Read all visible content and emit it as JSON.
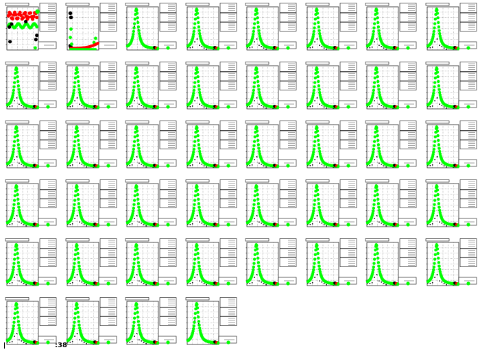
{
  "footer": {
    "label": ":38"
  },
  "colors": {
    "frame": "#000000",
    "green": "#00ff00",
    "red": "#ff0000",
    "black": "#000000",
    "grid": "#000000"
  },
  "chart_data": {
    "type": "scatter",
    "grid": true,
    "layout": {
      "rows": 6,
      "columns": 8
    },
    "panel_count": 44,
    "panels": [
      {
        "index": 0,
        "shape": "step"
      },
      {
        "index": 1,
        "shape": "rising"
      },
      {
        "index": 2,
        "shape": "peak",
        "black_peak": true
      },
      {
        "index": 3,
        "shape": "peak"
      },
      {
        "index": 4,
        "shape": "peak"
      },
      {
        "index": 5,
        "shape": "peak"
      },
      {
        "index": 6,
        "shape": "peak"
      },
      {
        "index": 7,
        "shape": "peak"
      },
      {
        "index": 8,
        "shape": "peak"
      },
      {
        "index": 9,
        "shape": "peak"
      },
      {
        "index": 10,
        "shape": "peak"
      },
      {
        "index": 11,
        "shape": "peak"
      },
      {
        "index": 12,
        "shape": "peak"
      },
      {
        "index": 13,
        "shape": "peak"
      },
      {
        "index": 14,
        "shape": "peak"
      },
      {
        "index": 15,
        "shape": "peak"
      },
      {
        "index": 16,
        "shape": "peak"
      },
      {
        "index": 17,
        "shape": "peak"
      },
      {
        "index": 18,
        "shape": "peak"
      },
      {
        "index": 19,
        "shape": "peak"
      },
      {
        "index": 20,
        "shape": "peak"
      },
      {
        "index": 21,
        "shape": "peak"
      },
      {
        "index": 22,
        "shape": "peak"
      },
      {
        "index": 23,
        "shape": "peak"
      },
      {
        "index": 24,
        "shape": "peak"
      },
      {
        "index": 25,
        "shape": "peak"
      },
      {
        "index": 26,
        "shape": "peak"
      },
      {
        "index": 27,
        "shape": "peak"
      },
      {
        "index": 28,
        "shape": "peak"
      },
      {
        "index": 29,
        "shape": "peak"
      },
      {
        "index": 30,
        "shape": "peak"
      },
      {
        "index": 31,
        "shape": "peak"
      },
      {
        "index": 32,
        "shape": "peak"
      },
      {
        "index": 33,
        "shape": "peak"
      },
      {
        "index": 34,
        "shape": "peak"
      },
      {
        "index": 35,
        "shape": "peak"
      },
      {
        "index": 36,
        "shape": "peak"
      },
      {
        "index": 37,
        "shape": "peak"
      },
      {
        "index": 38,
        "shape": "peak"
      },
      {
        "index": 39,
        "shape": "peak"
      },
      {
        "index": 40,
        "shape": "peak"
      },
      {
        "index": 41,
        "shape": "peak"
      },
      {
        "index": 42,
        "shape": "peak"
      },
      {
        "index": 43,
        "shape": "peak",
        "black_peak": true
      }
    ]
  }
}
